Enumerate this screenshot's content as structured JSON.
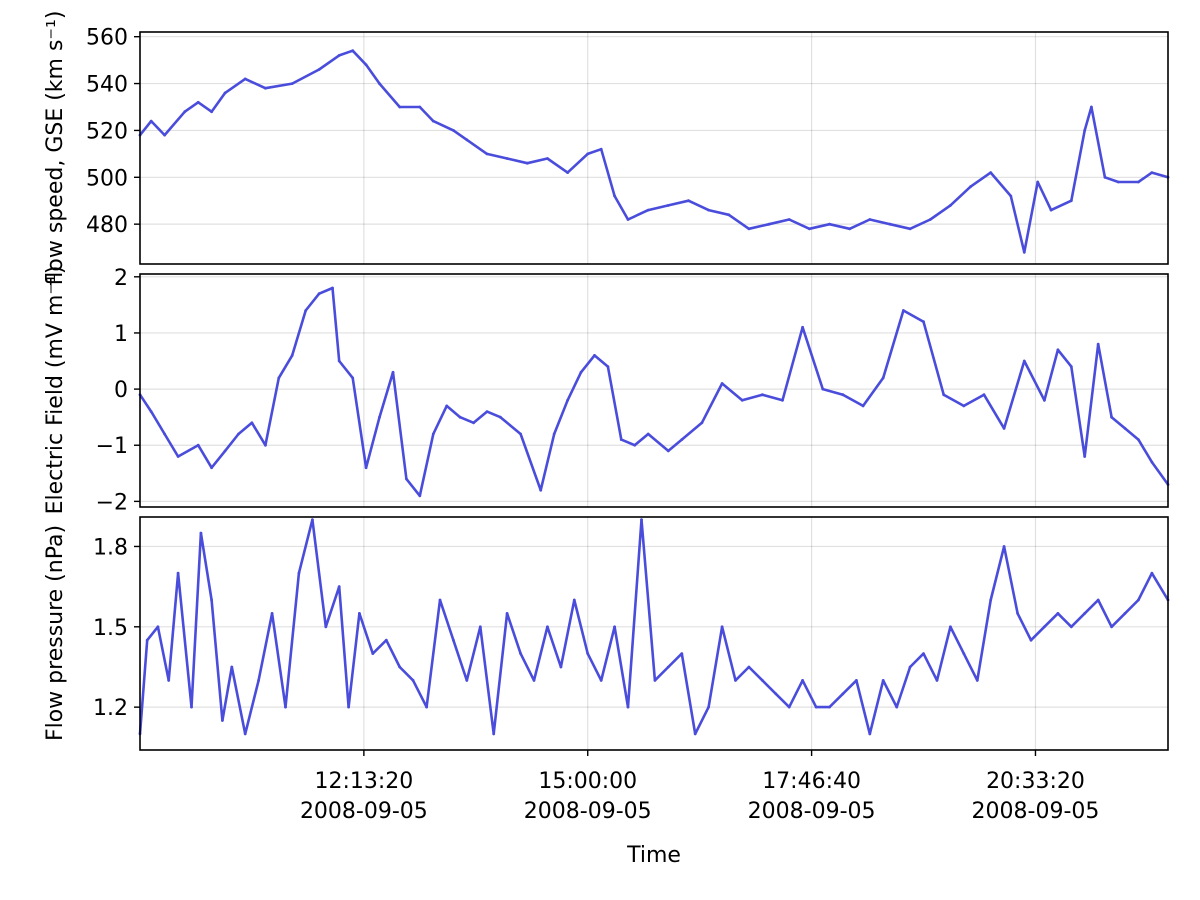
{
  "chart_data": [
    {
      "type": "line",
      "panel": "top",
      "ylabel": "flow speed, GSE (km s⁻¹)",
      "ylim": [
        463,
        562
      ],
      "yticks": [
        480,
        500,
        520,
        540,
        560
      ],
      "yticklabels": [
        "480",
        "500",
        "520",
        "540",
        "560"
      ],
      "grid": true,
      "color": "#4a4ddb",
      "series": [
        {
          "x": [
            "09:26:40",
            "09:35",
            "09:45",
            "10:00",
            "10:10",
            "10:20",
            "10:30",
            "10:45",
            "11:00",
            "11:20",
            "11:40",
            "11:55",
            "12:05",
            "12:15",
            "12:25",
            "12:40",
            "12:55",
            "13:05",
            "13:20",
            "13:30",
            "13:45",
            "14:00",
            "14:15",
            "14:30",
            "14:45",
            "15:00",
            "15:10",
            "15:20",
            "15:30",
            "15:45",
            "16:00",
            "16:15",
            "16:30",
            "16:45",
            "17:00",
            "17:15",
            "17:30",
            "17:45",
            "18:00",
            "18:15",
            "18:30",
            "18:45",
            "19:00",
            "19:15",
            "19:30",
            "19:45",
            "20:00",
            "20:15",
            "20:25",
            "20:35",
            "20:45",
            "21:00",
            "21:10",
            "21:15",
            "21:25",
            "21:35",
            "21:50",
            "22:00",
            "22:12"
          ],
          "y": [
            518,
            524,
            518,
            528,
            532,
            528,
            536,
            542,
            538,
            540,
            546,
            552,
            554,
            548,
            540,
            530,
            530,
            524,
            520,
            516,
            510,
            508,
            506,
            508,
            502,
            510,
            512,
            492,
            482,
            486,
            488,
            490,
            486,
            484,
            478,
            480,
            482,
            478,
            480,
            478,
            482,
            480,
            478,
            482,
            488,
            496,
            502,
            492,
            468,
            498,
            486,
            490,
            520,
            530,
            500,
            498,
            498,
            502,
            500
          ]
        }
      ]
    },
    {
      "type": "line",
      "panel": "middle",
      "ylabel": "Electric Field (mV m⁻¹)",
      "ylim": [
        -2.1,
        2.05
      ],
      "yticks": [
        -2,
        -1,
        0,
        1,
        2
      ],
      "yticklabels": [
        "−2",
        "−1",
        "0",
        "1",
        "2"
      ],
      "grid": true,
      "color": "#4a4ddb",
      "series": [
        {
          "x": [
            "09:26:40",
            "09:35",
            "09:45",
            "09:55",
            "10:10",
            "10:20",
            "10:30",
            "10:40",
            "10:50",
            "11:00",
            "11:10",
            "11:20",
            "11:30",
            "11:40",
            "11:50",
            "11:55",
            "12:05",
            "12:15",
            "12:25",
            "12:35",
            "12:45",
            "12:55",
            "13:05",
            "13:15",
            "13:25",
            "13:35",
            "13:45",
            "13:55",
            "14:10",
            "14:25",
            "14:35",
            "14:45",
            "14:55",
            "15:05",
            "15:15",
            "15:25",
            "15:35",
            "15:45",
            "16:00",
            "16:10",
            "16:25",
            "16:40",
            "16:55",
            "17:10",
            "17:25",
            "17:40",
            "17:55",
            "18:10",
            "18:25",
            "18:40",
            "18:55",
            "19:10",
            "19:25",
            "19:40",
            "19:55",
            "20:10",
            "20:25",
            "20:40",
            "20:50",
            "21:00",
            "21:10",
            "21:20",
            "21:30",
            "21:40",
            "21:50",
            "22:00",
            "22:12"
          ],
          "y": [
            -0.1,
            -0.4,
            -0.8,
            -1.2,
            -1.0,
            -1.4,
            -1.1,
            -0.8,
            -0.6,
            -1.0,
            0.2,
            0.6,
            1.4,
            1.7,
            1.8,
            0.5,
            0.2,
            -1.4,
            -0.5,
            0.3,
            -1.6,
            -1.9,
            -0.8,
            -0.3,
            -0.5,
            -0.6,
            -0.4,
            -0.5,
            -0.8,
            -1.8,
            -0.8,
            -0.2,
            0.3,
            0.6,
            0.4,
            -0.9,
            -1.0,
            -0.8,
            -1.1,
            -0.9,
            -0.6,
            0.1,
            -0.2,
            -0.1,
            -0.2,
            1.1,
            0.0,
            -0.1,
            -0.3,
            0.2,
            1.4,
            1.2,
            -0.1,
            -0.3,
            -0.1,
            -0.7,
            0.5,
            -0.2,
            0.7,
            0.4,
            -1.2,
            0.8,
            -0.5,
            -0.7,
            -0.9,
            -1.3,
            -1.7
          ]
        }
      ]
    },
    {
      "type": "line",
      "panel": "bottom",
      "ylabel": "Flow pressure (nPa)",
      "xlabel": "Time",
      "ylim": [
        1.04,
        1.91
      ],
      "yticks": [
        1.2,
        1.5,
        1.8
      ],
      "yticklabels": [
        "1.2",
        "1.5",
        "1.8"
      ],
      "xticks": [
        "12:13:20",
        "15:00:00",
        "17:46:40",
        "20:33:20"
      ],
      "xticklabels": [
        "12:13:20\n2008-09-05",
        "15:00:00\n2008-09-05",
        "17:46:40\n2008-09-05",
        "20:33:20\n2008-09-05"
      ],
      "xlim": [
        "09:26:40",
        "22:12:00"
      ],
      "grid": true,
      "color": "#4a4ddb",
      "series": [
        {
          "x": [
            "09:26:40",
            "09:32",
            "09:40",
            "09:48",
            "09:55",
            "10:05",
            "10:12",
            "10:20",
            "10:28",
            "10:35",
            "10:45",
            "10:55",
            "11:05",
            "11:15",
            "11:25",
            "11:35",
            "11:45",
            "11:55",
            "12:02",
            "12:10",
            "12:20",
            "12:30",
            "12:40",
            "12:50",
            "13:00",
            "13:10",
            "13:20",
            "13:30",
            "13:40",
            "13:50",
            "14:00",
            "14:10",
            "14:20",
            "14:30",
            "14:40",
            "14:50",
            "15:00",
            "15:10",
            "15:20",
            "15:30",
            "15:40",
            "15:50",
            "16:00",
            "16:10",
            "16:20",
            "16:30",
            "16:40",
            "16:50",
            "17:00",
            "17:10",
            "17:20",
            "17:30",
            "17:40",
            "17:50",
            "18:00",
            "18:10",
            "18:20",
            "18:30",
            "18:40",
            "18:50",
            "19:00",
            "19:10",
            "19:20",
            "19:30",
            "19:40",
            "19:50",
            "20:00",
            "20:10",
            "20:20",
            "20:30",
            "20:40",
            "20:50",
            "21:00",
            "21:10",
            "21:20",
            "21:30",
            "21:40",
            "21:50",
            "22:00",
            "22:12"
          ],
          "y": [
            1.1,
            1.45,
            1.5,
            1.3,
            1.7,
            1.2,
            1.85,
            1.6,
            1.15,
            1.35,
            1.1,
            1.3,
            1.55,
            1.2,
            1.7,
            1.9,
            1.5,
            1.65,
            1.2,
            1.55,
            1.4,
            1.45,
            1.35,
            1.3,
            1.2,
            1.6,
            1.45,
            1.3,
            1.5,
            1.1,
            1.55,
            1.4,
            1.3,
            1.5,
            1.35,
            1.6,
            1.4,
            1.3,
            1.5,
            1.2,
            1.9,
            1.3,
            1.35,
            1.4,
            1.1,
            1.2,
            1.5,
            1.3,
            1.35,
            1.3,
            1.25,
            1.2,
            1.3,
            1.2,
            1.2,
            1.25,
            1.3,
            1.1,
            1.3,
            1.2,
            1.35,
            1.4,
            1.3,
            1.5,
            1.4,
            1.3,
            1.6,
            1.8,
            1.55,
            1.45,
            1.5,
            1.55,
            1.5,
            1.55,
            1.6,
            1.5,
            1.55,
            1.6,
            1.7,
            1.6
          ]
        }
      ]
    }
  ]
}
